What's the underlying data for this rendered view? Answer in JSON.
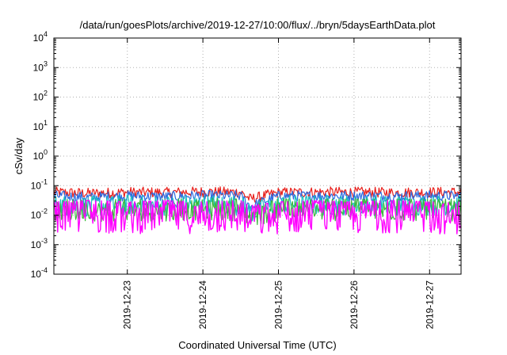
{
  "chart_data": {
    "type": "line",
    "title": "/data/run/goesPlots/archive/2019-12-27/10:00/flux/../bryn/5daysEarthData.plot",
    "xlabel": "Coordinated Universal Time (UTC)",
    "ylabel": "cSv/day",
    "yscale": "log",
    "ylim": [
      0.0001,
      10000
    ],
    "xlim": [
      "2019-12-22T00:40",
      "2019-12-27T10:00"
    ],
    "grid": true,
    "y_ticks": [
      {
        "value": 0.0001,
        "base": "10",
        "exp": "-4"
      },
      {
        "value": 0.001,
        "base": "10",
        "exp": "-3"
      },
      {
        "value": 0.01,
        "base": "10",
        "exp": "-2"
      },
      {
        "value": 0.1,
        "base": "10",
        "exp": "-1"
      },
      {
        "value": 1,
        "base": "10",
        "exp": "0"
      },
      {
        "value": 10,
        "base": "10",
        "exp": "1"
      },
      {
        "value": 100,
        "base": "10",
        "exp": "2"
      },
      {
        "value": 1000,
        "base": "10",
        "exp": "3"
      },
      {
        "value": 10000,
        "base": "10",
        "exp": "4"
      }
    ],
    "x_ticks": [
      {
        "value": "2019-12-23",
        "label": "2019-12-23"
      },
      {
        "value": "2019-12-24",
        "label": "2019-12-24"
      },
      {
        "value": "2019-12-25",
        "label": "2019-12-25"
      },
      {
        "value": "2019-12-26",
        "label": "2019-12-26"
      },
      {
        "value": "2019-12-27",
        "label": "2019-12-27"
      }
    ],
    "series": [
      {
        "color": "#e8201c",
        "x": [
          "2019-12-22T00:40",
          "2019-12-22T12:00",
          "2019-12-23T00:00",
          "2019-12-23T12:00",
          "2019-12-24T00:00",
          "2019-12-24T12:00",
          "2019-12-24T15:00",
          "2019-12-25T00:00",
          "2019-12-25T12:00",
          "2019-12-26T00:00",
          "2019-12-26T12:00",
          "2019-12-27T00:00",
          "2019-12-27T10:00"
        ],
        "y": [
          0.06,
          0.055,
          0.06,
          0.058,
          0.062,
          0.06,
          0.035,
          0.058,
          0.06,
          0.06,
          0.058,
          0.06,
          0.06
        ]
      },
      {
        "color": "#2d6be0",
        "x": [
          "2019-12-22T00:40",
          "2019-12-22T12:00",
          "2019-12-23T00:00",
          "2019-12-23T12:00",
          "2019-12-24T00:00",
          "2019-12-24T12:00",
          "2019-12-24T15:00",
          "2019-12-25T00:00",
          "2019-12-25T12:00",
          "2019-12-26T00:00",
          "2019-12-26T12:00",
          "2019-12-27T00:00",
          "2019-12-27T10:00"
        ],
        "y": [
          0.045,
          0.04,
          0.045,
          0.042,
          0.046,
          0.045,
          0.02,
          0.044,
          0.045,
          0.045,
          0.044,
          0.045,
          0.045
        ]
      },
      {
        "color": "#19c0c0",
        "x": [
          "2019-12-22T00:40",
          "2019-12-22T12:00",
          "2019-12-23T00:00",
          "2019-12-23T12:00",
          "2019-12-24T00:00",
          "2019-12-24T12:00",
          "2019-12-24T15:00",
          "2019-12-25T00:00",
          "2019-12-25T12:00",
          "2019-12-26T00:00",
          "2019-12-26T12:00",
          "2019-12-27T00:00",
          "2019-12-27T10:00"
        ],
        "y": [
          0.022,
          0.02,
          0.022,
          0.021,
          0.023,
          0.022,
          0.012,
          0.022,
          0.022,
          0.022,
          0.021,
          0.022,
          0.022
        ]
      },
      {
        "color": "#3cb83c",
        "x": [
          "2019-12-22T00:40",
          "2019-12-22T12:00",
          "2019-12-23T00:00",
          "2019-12-23T12:00",
          "2019-12-24T00:00",
          "2019-12-24T12:00",
          "2019-12-24T15:00",
          "2019-12-25T00:00",
          "2019-12-25T12:00",
          "2019-12-26T00:00",
          "2019-12-26T12:00",
          "2019-12-27T00:00",
          "2019-12-27T10:00"
        ],
        "y": [
          0.014,
          0.013,
          0.014,
          0.014,
          0.015,
          0.014,
          0.009,
          0.014,
          0.014,
          0.014,
          0.014,
          0.014,
          0.014
        ]
      },
      {
        "color": "#ff00ff",
        "x": [
          "2019-12-22T00:40",
          "2019-12-22T12:00",
          "2019-12-23T00:00",
          "2019-12-23T12:00",
          "2019-12-24T00:00",
          "2019-12-24T12:00",
          "2019-12-24T15:00",
          "2019-12-25T00:00",
          "2019-12-25T12:00",
          "2019-12-26T00:00",
          "2019-12-26T12:00",
          "2019-12-27T00:00",
          "2019-12-27T10:00"
        ],
        "y": [
          0.008,
          0.009,
          0.008,
          0.009,
          0.008,
          0.009,
          0.006,
          0.008,
          0.009,
          0.008,
          0.009,
          0.008,
          0.008
        ]
      }
    ]
  }
}
